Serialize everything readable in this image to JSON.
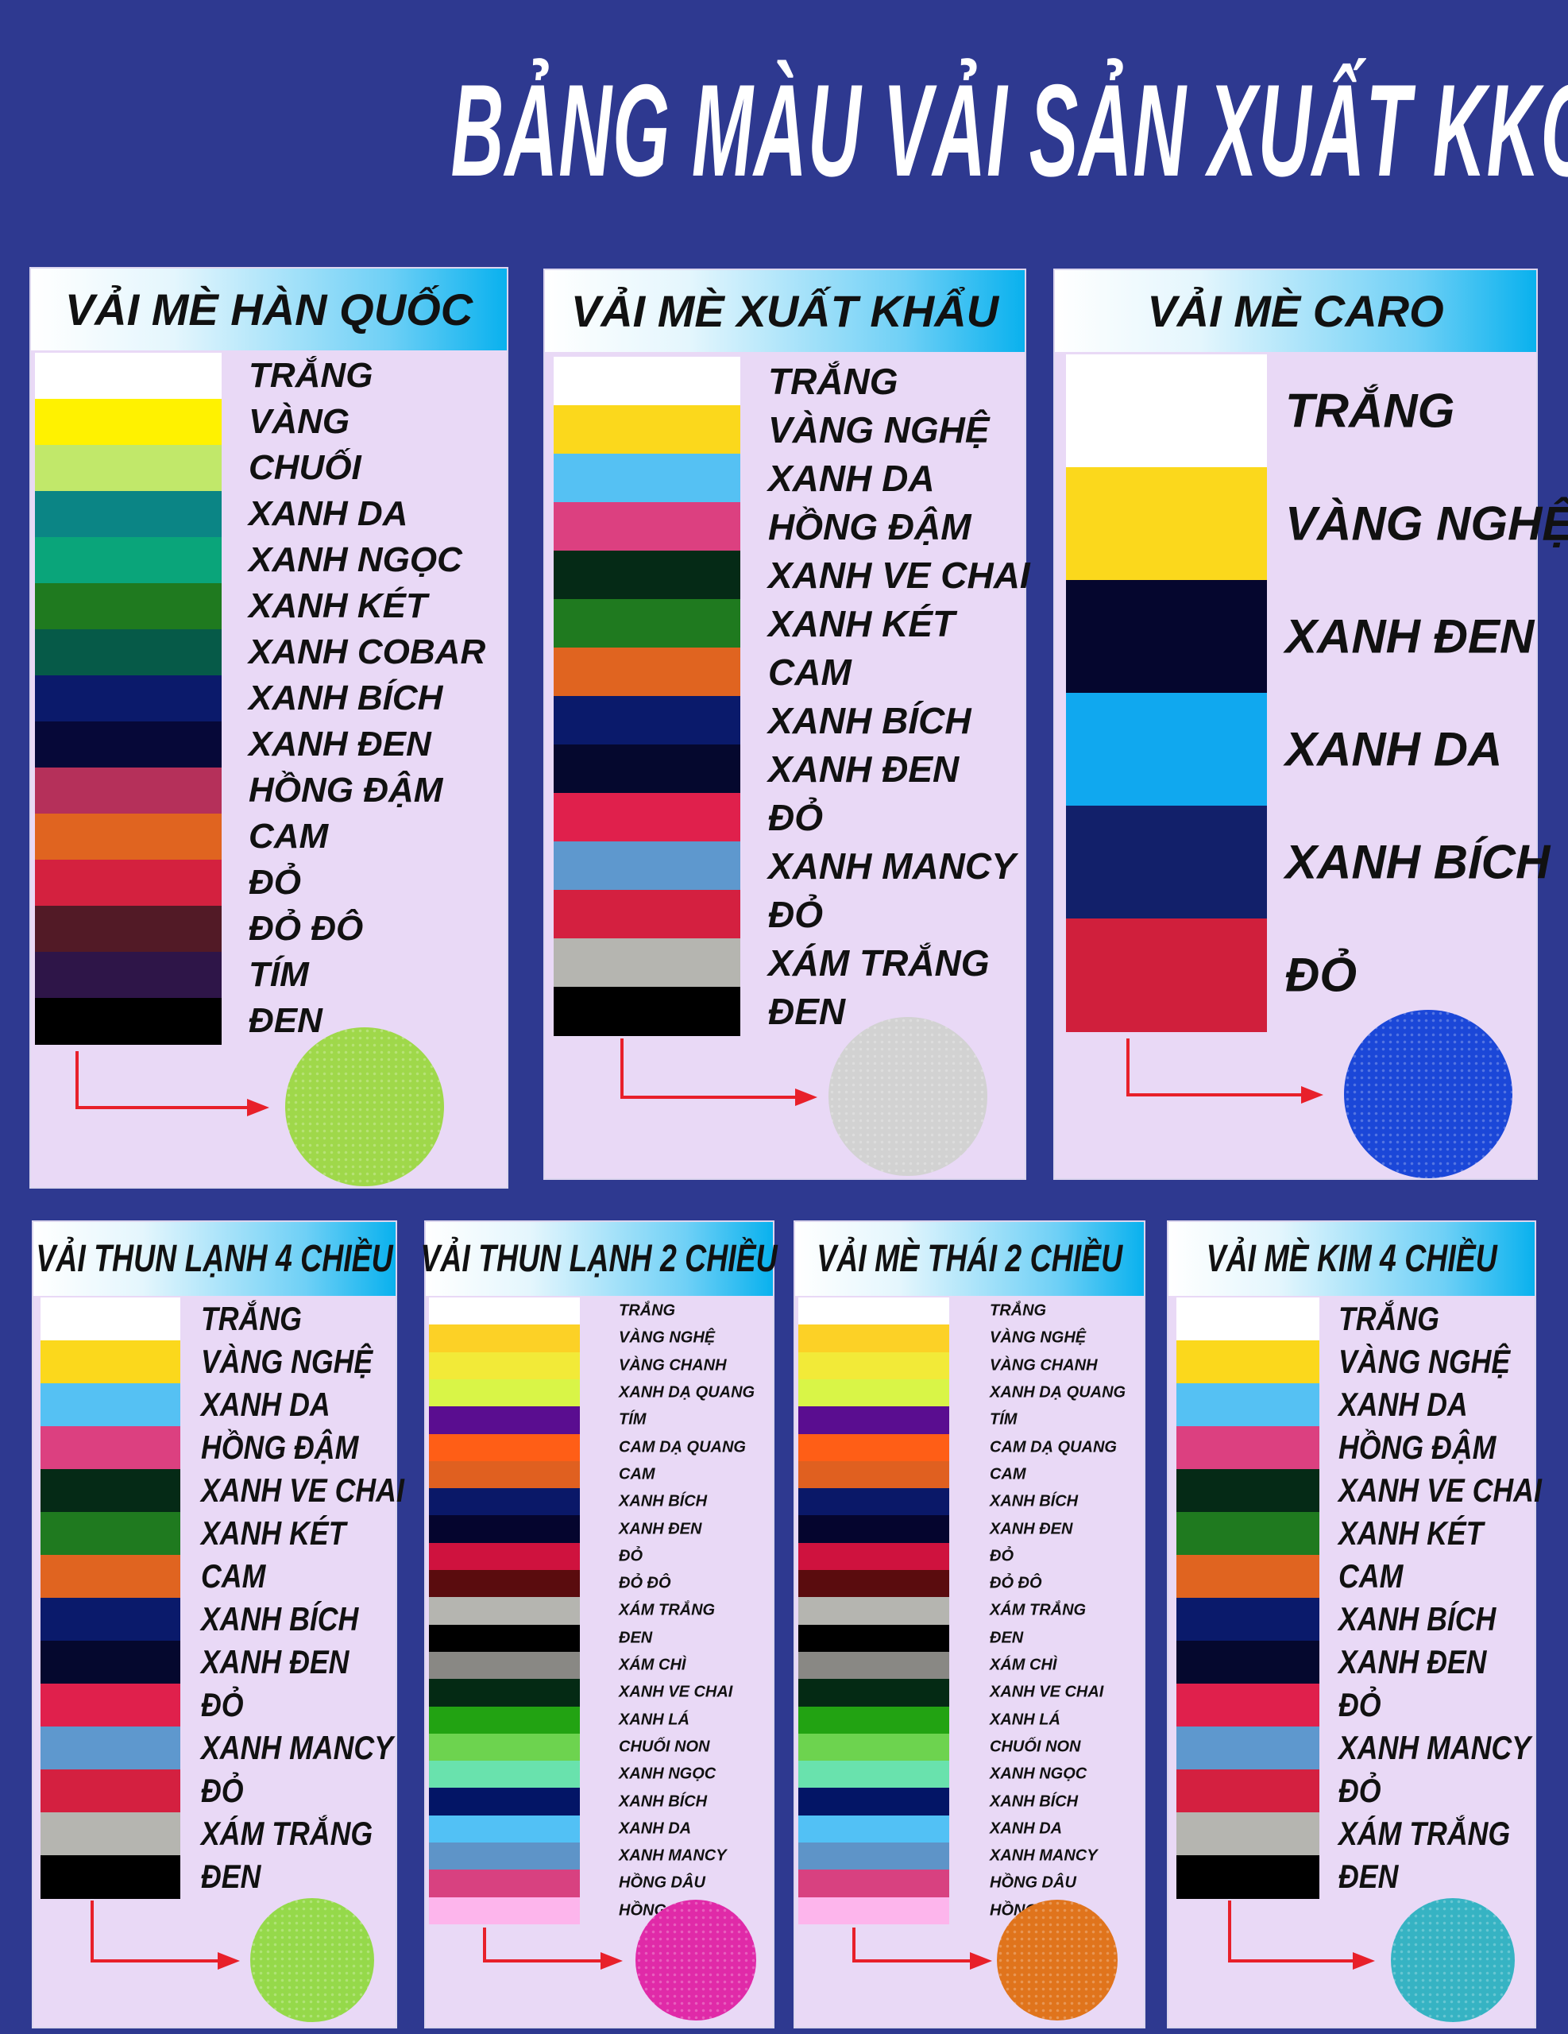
{
  "title": "BẢNG MÀU VẢI SẢN XUẤT KKO",
  "panels": [
    {
      "title": "VẢI MÈ HÀN QUỐC",
      "sample_color": "#9fd84a",
      "rows": [
        {
          "label": "TRẮNG",
          "color": "#ffffff"
        },
        {
          "label": "VÀNG",
          "color": "#fff200"
        },
        {
          "label": "CHUỐI",
          "color": "#c1e86a"
        },
        {
          "label": "XANH DA",
          "color": "#0b8585"
        },
        {
          "label": "XANH NGỌC",
          "color": "#0aa57a"
        },
        {
          "label": "XANH KÉT",
          "color": "#1f7a1f"
        },
        {
          "label": "XANH COBAR",
          "color": "#065a48"
        },
        {
          "label": "XANH BÍCH",
          "color": "#0b1a6b"
        },
        {
          "label": "XANH ĐEN",
          "color": "#060838"
        },
        {
          "label": "HỒNG ĐẬM",
          "color": "#b5305a"
        },
        {
          "label": "CAM",
          "color": "#e06420"
        },
        {
          "label": "ĐỎ",
          "color": "#d4213f"
        },
        {
          "label": "ĐỎ ĐÔ",
          "color": "#521a26"
        },
        {
          "label": "TÍM",
          "color": "#2e1548"
        },
        {
          "label": "ĐEN",
          "color": "#000000"
        }
      ]
    },
    {
      "title": "VẢI MÈ XUẤT KHẨU",
      "sample_color": "#d2d2d2",
      "rows": [
        {
          "label": "TRẮNG",
          "color": "#ffffff"
        },
        {
          "label": "VÀNG NGHỆ",
          "color": "#fbd81c"
        },
        {
          "label": "XANH DA",
          "color": "#55c1f3"
        },
        {
          "label": "HỒNG ĐẬM",
          "color": "#dc4080"
        },
        {
          "label": "XANH VE CHAI",
          "color": "#052a16"
        },
        {
          "label": "XANH KÉT",
          "color": "#1f7a1f"
        },
        {
          "label": "CAM",
          "color": "#e06420"
        },
        {
          "label": "XANH BÍCH",
          "color": "#0a1a6b"
        },
        {
          "label": "XANH ĐEN",
          "color": "#05082e"
        },
        {
          "label": "ĐỎ",
          "color": "#e0204c"
        },
        {
          "label": "XANH MANCY",
          "color": "#5e98ce"
        },
        {
          "label": "ĐỎ",
          "color": "#d42040"
        },
        {
          "label": "XÁM TRẮNG",
          "color": "#b5b5b0"
        },
        {
          "label": "ĐEN",
          "color": "#000000"
        }
      ]
    },
    {
      "title": "VẢI MÈ CARO",
      "sample_color": "#1b47d8",
      "rows": [
        {
          "label": "TRẮNG",
          "color": "#ffffff"
        },
        {
          "label": "VÀNG NGHỆ",
          "color": "#fbd81c"
        },
        {
          "label": "XANH ĐEN",
          "color": "#05062e"
        },
        {
          "label": "XANH DA",
          "color": "#10a8ef"
        },
        {
          "label": "XANH BÍCH",
          "color": "#12206a"
        },
        {
          "label": "ĐỎ",
          "color": "#d01f3c"
        }
      ]
    },
    {
      "title": "VẢI THUN LẠNH 4 CHIỀU",
      "sample_color": "#95d94a",
      "rows": [
        {
          "label": "TRẮNG",
          "color": "#ffffff"
        },
        {
          "label": "VÀNG NGHỆ",
          "color": "#fbd81c"
        },
        {
          "label": "XANH DA",
          "color": "#55c1f3"
        },
        {
          "label": "HỒNG ĐẬM",
          "color": "#dc4080"
        },
        {
          "label": "XANH VE CHAI",
          "color": "#052a16"
        },
        {
          "label": "XANH KÉT",
          "color": "#1f7a1f"
        },
        {
          "label": "CAM",
          "color": "#e06420"
        },
        {
          "label": "XANH BÍCH",
          "color": "#0a1a6b"
        },
        {
          "label": "XANH ĐEN",
          "color": "#05082e"
        },
        {
          "label": "ĐỎ",
          "color": "#e0204c"
        },
        {
          "label": "XANH MANCY",
          "color": "#5e98ce"
        },
        {
          "label": "ĐỎ",
          "color": "#d42040"
        },
        {
          "label": "XÁM TRẮNG",
          "color": "#b5b5b0"
        },
        {
          "label": "ĐEN",
          "color": "#000000"
        }
      ]
    },
    {
      "title": "VẢI THUN LẠNH 2 CHIỀU",
      "sample_color": "#e02aa8",
      "rows": [
        {
          "label": "TRẮNG",
          "color": "#ffffff"
        },
        {
          "label": "VÀNG NGHỆ",
          "color": "#fcd126"
        },
        {
          "label": "VÀNG CHANH",
          "color": "#f2ea38"
        },
        {
          "label": "XANH DẠ QUANG",
          "color": "#d9f547"
        },
        {
          "label": "TÍM",
          "color": "#5a0d90"
        },
        {
          "label": "CAM DẠ QUANG",
          "color": "#ff5e16"
        },
        {
          "label": "CAM",
          "color": "#e06020"
        },
        {
          "label": "XANH BÍCH",
          "color": "#0a1868"
        },
        {
          "label": "XANH ĐEN",
          "color": "#05052e"
        },
        {
          "label": "ĐỎ",
          "color": "#cf123e"
        },
        {
          "label": "ĐỎ ĐÔ",
          "color": "#5a0c0e"
        },
        {
          "label": "XÁM TRẮNG",
          "color": "#b5b5b0"
        },
        {
          "label": "ĐEN",
          "color": "#000000"
        },
        {
          "label": "XÁM CHÌ",
          "color": "#898884"
        },
        {
          "label": "XANH VE CHAI",
          "color": "#042a14"
        },
        {
          "label": "XANH LÁ",
          "color": "#22a312"
        },
        {
          "label": "CHUỐI NON",
          "color": "#6dd34f"
        },
        {
          "label": "XANH NGỌC",
          "color": "#69e2ad"
        },
        {
          "label": "XANH BÍCH",
          "color": "#031566"
        },
        {
          "label": "XANH DA",
          "color": "#52c1f5"
        },
        {
          "label": "XANH MANCY",
          "color": "#5e94c8"
        },
        {
          "label": "HỒNG DÂU",
          "color": "#d84180"
        },
        {
          "label": "HỒNG SEN",
          "color": "#fdb5ec"
        }
      ]
    },
    {
      "title": "VẢI MÈ THÁI 2 CHIỀU",
      "sample_color": "#e0741c",
      "rows": [
        {
          "label": "TRẮNG",
          "color": "#ffffff"
        },
        {
          "label": "VÀNG NGHỆ",
          "color": "#fcd126"
        },
        {
          "label": "VÀNG CHANH",
          "color": "#f2ea38"
        },
        {
          "label": "XANH DẠ QUANG",
          "color": "#d9f547"
        },
        {
          "label": "TÍM",
          "color": "#5a0d90"
        },
        {
          "label": "CAM DẠ QUANG",
          "color": "#ff5e16"
        },
        {
          "label": "CAM",
          "color": "#e06020"
        },
        {
          "label": "XANH BÍCH",
          "color": "#0a1868"
        },
        {
          "label": "XANH ĐEN",
          "color": "#05052e"
        },
        {
          "label": "ĐỎ",
          "color": "#cf123e"
        },
        {
          "label": "ĐỎ ĐÔ",
          "color": "#5a0c0e"
        },
        {
          "label": "XÁM TRẮNG",
          "color": "#b5b5b0"
        },
        {
          "label": "ĐEN",
          "color": "#000000"
        },
        {
          "label": "XÁM CHÌ",
          "color": "#898884"
        },
        {
          "label": "XANH VE CHAI",
          "color": "#042a14"
        },
        {
          "label": "XANH LÁ",
          "color": "#22a312"
        },
        {
          "label": "CHUỐI NON",
          "color": "#6dd34f"
        },
        {
          "label": "XANH NGỌC",
          "color": "#69e2ad"
        },
        {
          "label": "XANH BÍCH",
          "color": "#031566"
        },
        {
          "label": "XANH DA",
          "color": "#52c1f5"
        },
        {
          "label": "XANH MANCY",
          "color": "#5e94c8"
        },
        {
          "label": "HỒNG DÂU",
          "color": "#d84180"
        },
        {
          "label": "HỒNG SEN",
          "color": "#fdb5ec"
        }
      ]
    },
    {
      "title": "VẢI MÈ KIM 4 CHIỀU",
      "sample_color": "#36b3c3",
      "rows": [
        {
          "label": "TRẮNG",
          "color": "#ffffff"
        },
        {
          "label": "VÀNG NGHỆ",
          "color": "#fbd81c"
        },
        {
          "label": "XANH DA",
          "color": "#55c1f3"
        },
        {
          "label": "HỒNG ĐẬM",
          "color": "#dc4080"
        },
        {
          "label": "XANH VE CHAI",
          "color": "#052a16"
        },
        {
          "label": "XANH KÉT",
          "color": "#1f7a1f"
        },
        {
          "label": "CAM",
          "color": "#e06420"
        },
        {
          "label": "XANH BÍCH",
          "color": "#0a1a6b"
        },
        {
          "label": "XANH ĐEN",
          "color": "#05082e"
        },
        {
          "label": "ĐỎ",
          "color": "#e0204c"
        },
        {
          "label": "XANH MANCY",
          "color": "#5e98ce"
        },
        {
          "label": "ĐỎ",
          "color": "#d42040"
        },
        {
          "label": "XÁM TRẮNG",
          "color": "#b5b5b0"
        },
        {
          "label": "ĐEN",
          "color": "#000000"
        }
      ]
    }
  ]
}
